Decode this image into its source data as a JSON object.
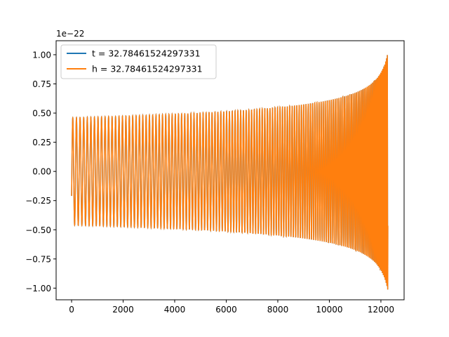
{
  "chart_data": {
    "type": "line",
    "title": "",
    "xlabel": "",
    "ylabel": "",
    "offset_label": "1e−22",
    "xlim": [
      -600,
      12900
    ],
    "ylim": [
      -1.1,
      1.12
    ],
    "xticks": [
      0,
      2000,
      4000,
      6000,
      8000,
      10000,
      12000
    ],
    "xtick_labels": [
      "0",
      "2000",
      "4000",
      "6000",
      "8000",
      "10000",
      "12000"
    ],
    "yticks": [
      -1.0,
      -0.75,
      -0.5,
      -0.25,
      0.0,
      0.25,
      0.5,
      0.75,
      1.0
    ],
    "ytick_labels": [
      "−1.00",
      "−0.75",
      "−0.50",
      "−0.25",
      "0.00",
      "0.25",
      "0.50",
      "0.75",
      "1.00"
    ],
    "grid": false,
    "legend_position": "top-left",
    "series": [
      {
        "name": "t = 32.78461524297331",
        "color": "#1f77b4",
        "description_values": {
          "x_start": 0,
          "x_end": 12270,
          "amplitude_start": 0.46,
          "amplitude_end": 1.02,
          "initial_value": -0.21
        }
      },
      {
        "name": "h = 32.78461524297331",
        "color": "#ff7f0e",
        "description_values": {
          "x_start": 0,
          "x_end": 12270,
          "amplitude_start": 0.46,
          "amplitude_end": 1.02,
          "initial_value": -0.21
        }
      }
    ]
  }
}
